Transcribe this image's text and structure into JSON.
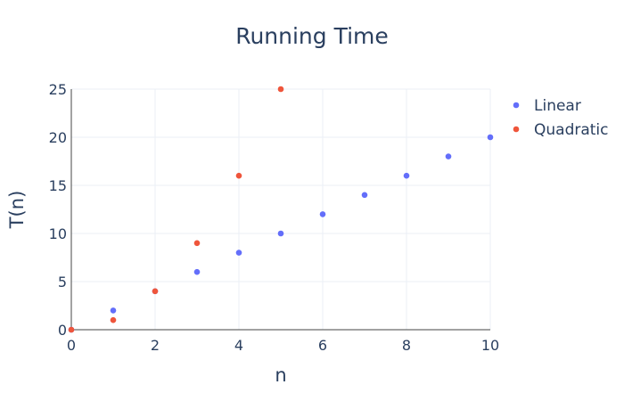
{
  "chart_data": {
    "type": "scatter",
    "title": "Running Time",
    "xlabel": "n",
    "ylabel": "T(n)",
    "xlim": [
      0,
      10
    ],
    "ylim": [
      0,
      25
    ],
    "x_ticks": [
      "0",
      "2",
      "4",
      "6",
      "8",
      "10"
    ],
    "y_ticks": [
      "0",
      "5",
      "10",
      "15",
      "20",
      "25"
    ],
    "grid": true,
    "legend_position": "top-right",
    "series": [
      {
        "name": "Linear",
        "color": "#636efa",
        "x": [
          0,
          1,
          2,
          3,
          4,
          5,
          6,
          7,
          8,
          9,
          10
        ],
        "y": [
          0,
          2,
          4,
          6,
          8,
          10,
          12,
          14,
          16,
          18,
          20
        ]
      },
      {
        "name": "Quadratic",
        "color": "#ef553b",
        "x": [
          0,
          1,
          2,
          3,
          4,
          5
        ],
        "y": [
          0,
          1,
          4,
          9,
          16,
          25
        ]
      }
    ]
  }
}
